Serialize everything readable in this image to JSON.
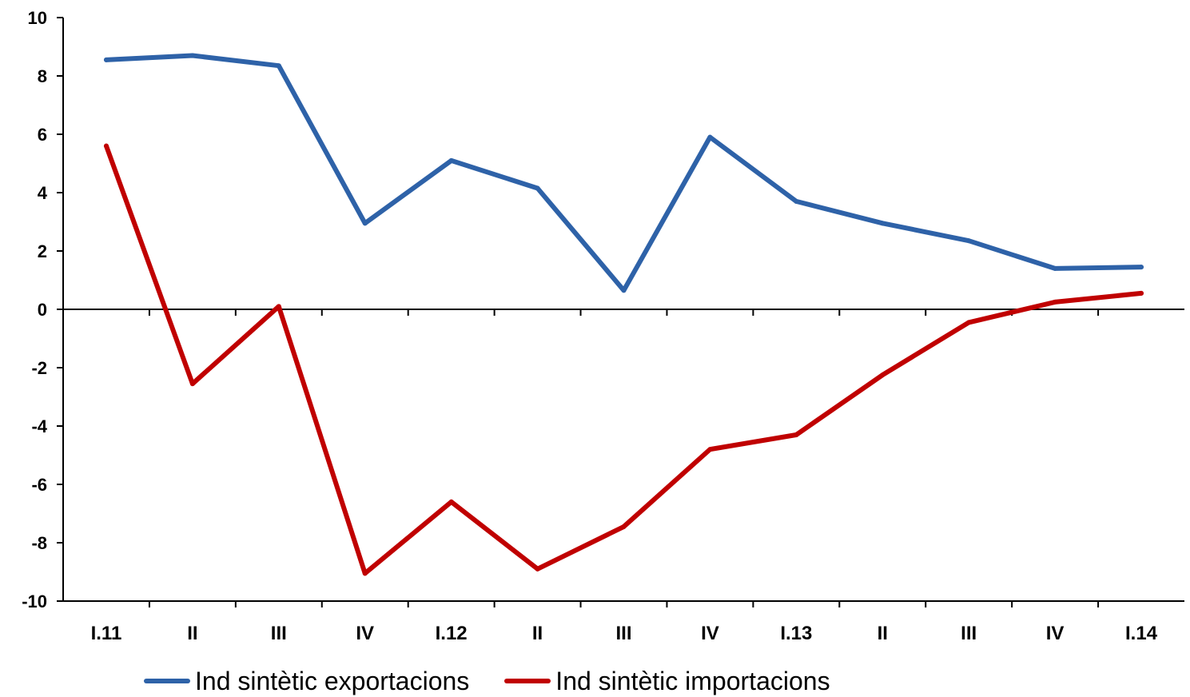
{
  "chart_data": {
    "type": "line",
    "categories": [
      "I.11",
      "II",
      "III",
      "IV",
      "I.12",
      "II",
      "III",
      "IV",
      "I.13",
      "II",
      "III",
      "IV",
      "I.14"
    ],
    "series": [
      {
        "name": "Ind sintètic exportacions",
        "color": "#2e62a8",
        "values": [
          8.55,
          8.7,
          8.35,
          2.95,
          5.1,
          4.15,
          0.65,
          5.9,
          3.7,
          2.95,
          2.35,
          1.4,
          1.45
        ]
      },
      {
        "name": "Ind sintètic importacions",
        "color": "#c00000",
        "values": [
          5.6,
          -2.55,
          0.1,
          -9.05,
          -6.6,
          -8.9,
          -7.45,
          -4.8,
          -4.3,
          -2.25,
          -0.45,
          0.25,
          0.55
        ]
      }
    ],
    "ylim": [
      -10,
      10
    ],
    "yticks": [
      10,
      8,
      6,
      4,
      2,
      0,
      -2,
      -4,
      -6,
      -8,
      -10
    ],
    "title": "",
    "xlabel": "",
    "ylabel": "",
    "grid": false,
    "legend_position": "bottom"
  }
}
